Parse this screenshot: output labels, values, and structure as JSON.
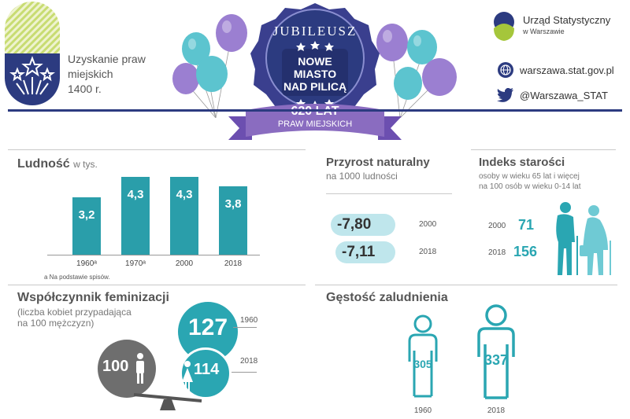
{
  "header": {
    "city_rights_text_1": "Uzyskanie praw",
    "city_rights_text_2": "miejskich",
    "city_rights_year": "1400 r.",
    "badge_top": "JUBILEUSZ",
    "badge_name_1": "NOWE",
    "badge_name_2": "MIASTO",
    "badge_name_3": "NAD PILICĄ",
    "ribbon_big": "620 LAT",
    "ribbon_small": "PRAW MIEJSKICH",
    "office_name": "Urząd Statystyczny",
    "office_city": "w Warszawie",
    "website": "warszawa.stat.gov.pl",
    "twitter": "@Warszawa_STAT"
  },
  "colors": {
    "teal": "#2aa6b2",
    "navy": "#2c3b80",
    "purple": "#8a6cc0",
    "grey": "#6e6e6e",
    "green": "#a5c63b"
  },
  "population": {
    "title": "Ludność",
    "unit": "w tys.",
    "footnote": "a Na podstawie spisów.",
    "chart_data": {
      "type": "bar",
      "categories": [
        "1960",
        "1970",
        "2000",
        "2018"
      ],
      "category_labels": [
        "1960ᵃ",
        "1970ᵃ",
        "2000",
        "2018"
      ],
      "values": [
        3.2,
        4.3,
        4.3,
        3.8
      ],
      "value_labels": [
        "3,2",
        "4,3",
        "4,3",
        "3,8"
      ],
      "ylim": [
        0,
        4.8
      ]
    }
  },
  "natural_growth": {
    "title": "Przyrost naturalny",
    "subtitle": "na 1000 ludności",
    "rows": [
      {
        "value": "-7,80",
        "year": "2000"
      },
      {
        "value": "-7,11",
        "year": "2018"
      }
    ]
  },
  "aging_index": {
    "title": "Indeks starości",
    "subtitle_1": "osoby w wieku 65 lat i więcej",
    "subtitle_2": "na 100 osób w wieku 0-14 lat",
    "rows": [
      {
        "year": "2000",
        "value": "71"
      },
      {
        "year": "2018",
        "value": "156"
      }
    ]
  },
  "feminization": {
    "title": "Współczynnik feminizacji",
    "subtitle_1": "(liczba kobiet przypadająca",
    "subtitle_2": "na 100 mężczyzn)",
    "men_value": "100",
    "rows": [
      {
        "value": "127",
        "year": "1960"
      },
      {
        "value": "114",
        "year": "2018"
      }
    ]
  },
  "density": {
    "title": "Gęstość zaludnienia",
    "rows": [
      {
        "value": "305",
        "year": "1960"
      },
      {
        "value": "337",
        "year": "2018"
      }
    ]
  }
}
